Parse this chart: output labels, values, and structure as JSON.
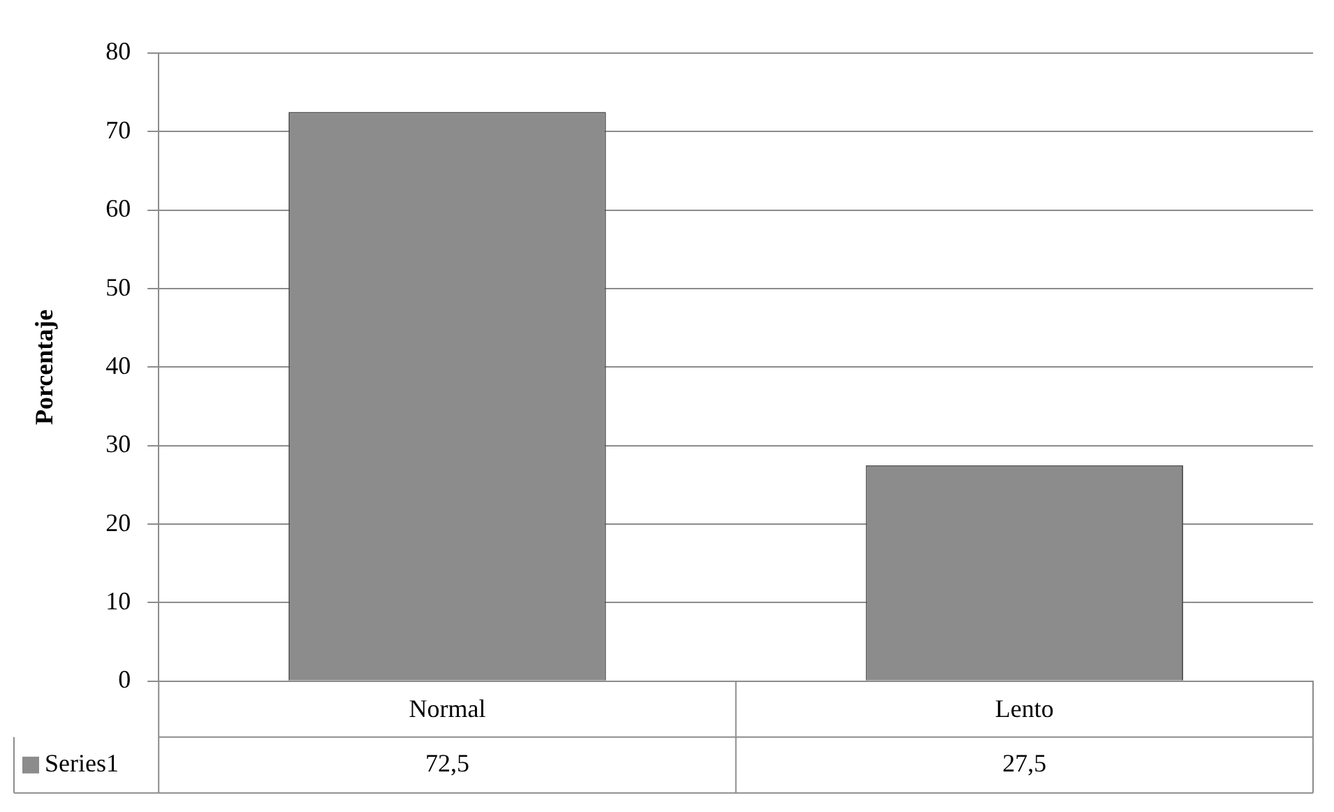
{
  "chart_data": {
    "type": "bar",
    "ylabel": "Porcentaje",
    "categories": [
      "Normal",
      "Lento"
    ],
    "series": [
      {
        "name": "Series1",
        "color": "#8c8c8c",
        "values": [
          72.5,
          27.5
        ],
        "value_labels": [
          "72,5",
          "27,5"
        ]
      }
    ],
    "ylim": [
      0,
      80
    ],
    "yticks": [
      0,
      10,
      20,
      30,
      40,
      50,
      60,
      70,
      80
    ],
    "grid": "y",
    "legend": "bottom"
  }
}
